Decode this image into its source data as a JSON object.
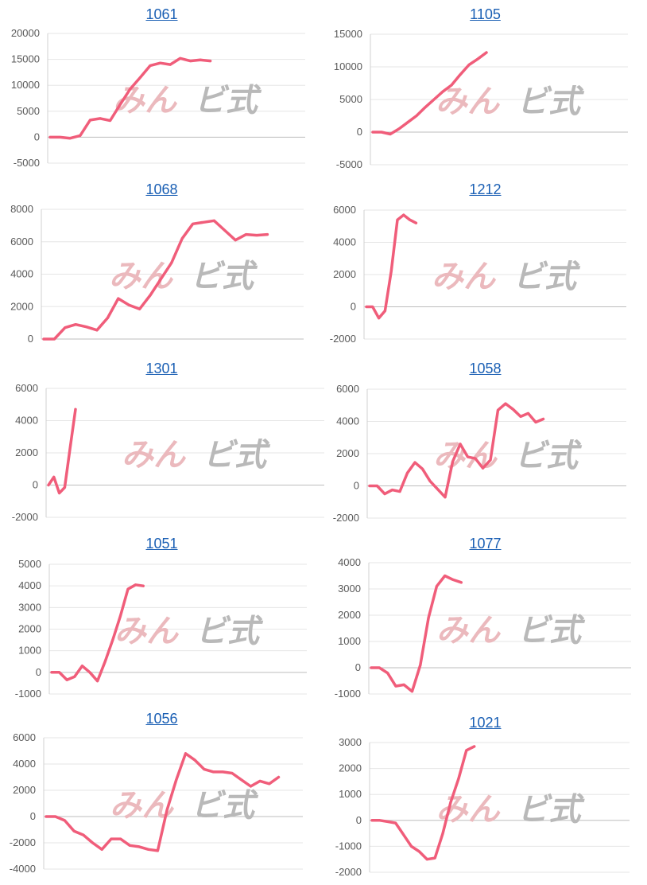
{
  "watermark": {
    "part1": "みん",
    "part2": "ビ式"
  },
  "chart_data": [
    {
      "type": "line",
      "title": "1061",
      "ylim": [
        -5000,
        20000
      ],
      "yticks": [
        "20000",
        "15000",
        "10000",
        "5000",
        "0",
        "-5000"
      ],
      "values": [
        0,
        0,
        -200,
        300,
        3300,
        3600,
        3200,
        6300,
        9300,
        11500,
        13800,
        14300,
        14000,
        15200,
        14700,
        14900,
        14700
      ]
    },
    {
      "type": "line",
      "title": "1105",
      "ylim": [
        -5000,
        15000
      ],
      "yticks": [
        "15000",
        "10000",
        "5000",
        "0",
        "-5000"
      ],
      "values": [
        0,
        0,
        -300,
        500,
        1500,
        2500,
        3800,
        5000,
        6200,
        7200,
        8800,
        10300,
        11200,
        12200
      ]
    },
    {
      "type": "line",
      "title": "1068",
      "ylim": [
        0,
        8000
      ],
      "yticks": [
        "8000",
        "6000",
        "4000",
        "2000",
        "0"
      ],
      "values": [
        0,
        0,
        700,
        900,
        750,
        550,
        1300,
        2500,
        2100,
        1850,
        2700,
        3700,
        4700,
        6200,
        7100,
        7200,
        7300,
        6700,
        6100,
        6450,
        6400,
        6450
      ]
    },
    {
      "type": "line",
      "title": "1212",
      "ylim": [
        -2000,
        6000
      ],
      "yticks": [
        "6000",
        "4000",
        "2000",
        "0",
        "-2000"
      ],
      "values": [
        0,
        0,
        -700,
        -250,
        2200,
        5400,
        5700,
        5400,
        5200
      ]
    },
    {
      "type": "line",
      "title": "1301",
      "ylim": [
        -2000,
        6000
      ],
      "yticks": [
        "6000",
        "4000",
        "2000",
        "0",
        "-2000"
      ],
      "values": [
        0,
        500,
        -500,
        -150,
        2300,
        4700
      ]
    },
    {
      "type": "line",
      "title": "1058",
      "ylim": [
        -2000,
        6000
      ],
      "yticks": [
        "6000",
        "4000",
        "2000",
        "0",
        "-2000"
      ],
      "values": [
        0,
        0,
        -500,
        -250,
        -350,
        800,
        1450,
        1050,
        300,
        -200,
        -700,
        1500,
        2600,
        1800,
        1700,
        1100,
        1600,
        4700,
        5100,
        4750,
        4300,
        4500,
        3950,
        4150
      ]
    },
    {
      "type": "line",
      "title": "1051",
      "ylim": [
        -1000,
        5000
      ],
      "yticks": [
        "5000",
        "4000",
        "3000",
        "2000",
        "1000",
        "0",
        "-1000"
      ],
      "values": [
        0,
        0,
        -350,
        -200,
        300,
        0,
        -400,
        500,
        1500,
        2600,
        3850,
        4050,
        4000
      ]
    },
    {
      "type": "line",
      "title": "1077",
      "ylim": [
        -1000,
        4000
      ],
      "yticks": [
        "4000",
        "3000",
        "2000",
        "1000",
        "0",
        "-1000"
      ],
      "values": [
        0,
        0,
        -200,
        -700,
        -650,
        -900,
        100,
        1900,
        3100,
        3500,
        3350,
        3250
      ]
    },
    {
      "type": "line",
      "title": "1056",
      "ylim": [
        -4000,
        6000
      ],
      "yticks": [
        "6000",
        "4000",
        "2000",
        "0",
        "-2000",
        "-4000"
      ],
      "values": [
        0,
        0,
        -300,
        -1100,
        -1400,
        -2000,
        -2500,
        -1700,
        -1700,
        -2200,
        -2300,
        -2500,
        -2600,
        500,
        2800,
        4800,
        4300,
        3600,
        3400,
        3400,
        3300,
        2800,
        2300,
        2700,
        2500,
        3000
      ]
    },
    {
      "type": "line",
      "title": "1021",
      "ylim": [
        -2000,
        3000
      ],
      "yticks": [
        "3000",
        "2000",
        "1000",
        "0",
        "-1000",
        "-2000"
      ],
      "values": [
        0,
        0,
        -50,
        -100,
        -550,
        -1000,
        -1200,
        -1500,
        -1450,
        -500,
        700,
        1600,
        2700,
        2850
      ]
    }
  ]
}
